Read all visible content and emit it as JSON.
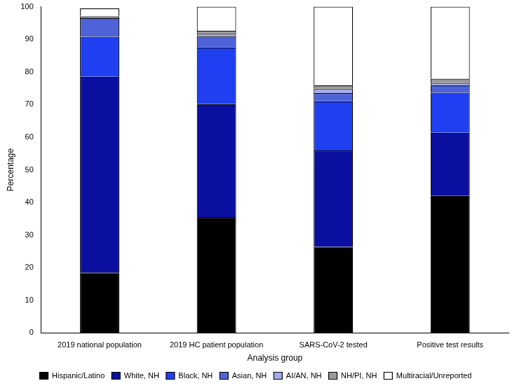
{
  "chart_data": {
    "type": "bar",
    "stacked": true,
    "grid": false,
    "legend": "bottom",
    "x_label": "Analysis group",
    "y_label": "Percentage",
    "categories": [
      "2019 national population",
      "2019 HC patient population",
      "SARS-CoV-2 tested",
      "Positive test results"
    ],
    "ylim": [
      0,
      100
    ],
    "yticks": [
      0,
      10,
      20,
      30,
      40,
      50,
      60,
      70,
      80,
      90,
      100
    ],
    "series": [
      {
        "name": "Hispanic/Latino",
        "color": "#000000",
        "values": [
          18.5,
          35.5,
          26.4,
          42.0
        ]
      },
      {
        "name": "White, NH",
        "color": "#0a0fa0",
        "values": [
          60.0,
          34.6,
          29.5,
          19.3
        ]
      },
      {
        "name": "Black, NH",
        "color": "#1f3ff0",
        "values": [
          12.3,
          17.4,
          15.1,
          12.3
        ]
      },
      {
        "name": "Asian, NH",
        "color": "#4f63d9",
        "values": [
          5.7,
          3.5,
          2.5,
          2.3
        ]
      },
      {
        "name": "AI/AN, NH",
        "color": "#a3abea",
        "values": [
          0.5,
          0.7,
          1.4,
          0.7
        ]
      },
      {
        "name": "NH/PI, NH",
        "color": "#9a9a9a",
        "values": [
          0.2,
          0.9,
          1.0,
          1.3
        ]
      },
      {
        "name": "Multiracial/Unreported",
        "color": "#ffffff",
        "values": [
          2.3,
          7.4,
          24.1,
          22.1
        ]
      }
    ]
  }
}
